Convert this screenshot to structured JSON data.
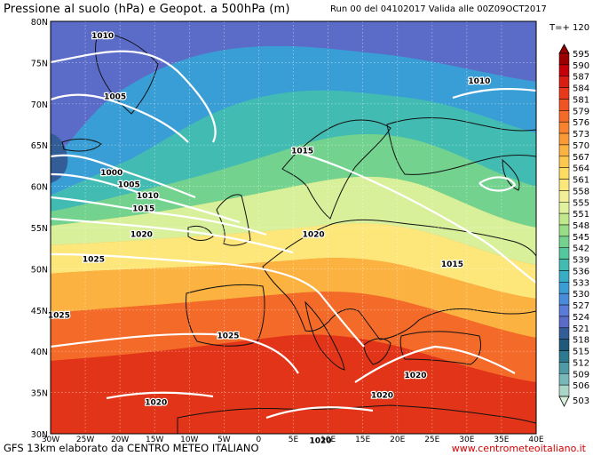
{
  "header": {
    "title": "Pressione al suolo (hPa) e Geopot. a 500hPa (m)",
    "run_info": "Run 00 del 04102017  Valida alle 00Z09OCT2017",
    "forecast_step": "T=+ 120"
  },
  "footer": {
    "model_credit": "GFS 13km elaborato da CENTRO METEO ITALIANO",
    "website": "www.centrometeoitaliano.it"
  },
  "map": {
    "lat_labels": [
      "80N",
      "75N",
      "70N",
      "65N",
      "60N",
      "55N",
      "50N",
      "45N",
      "40N",
      "35N",
      "30N"
    ],
    "lon_labels": [
      "30W",
      "25W",
      "20W",
      "15W",
      "10W",
      "5W",
      "0",
      "5E",
      "10E",
      "15E",
      "20E",
      "25E",
      "30E",
      "35E",
      "40E"
    ],
    "isobars": [
      {
        "label": "1010",
        "lon": -22.5,
        "lat": 78.3
      },
      {
        "label": "1010",
        "lon": 31.8,
        "lat": 72.8
      },
      {
        "label": "1005",
        "lon": -20.7,
        "lat": 70.9
      },
      {
        "label": "1000",
        "lon": -21.2,
        "lat": 61.7
      },
      {
        "label": "1005",
        "lon": -18.7,
        "lat": 60.2
      },
      {
        "label": "1010",
        "lon": -16.0,
        "lat": 58.9
      },
      {
        "label": "1015",
        "lon": 6.3,
        "lat": 64.3
      },
      {
        "label": "1015",
        "lon": -16.6,
        "lat": 57.3
      },
      {
        "label": "1020",
        "lon": -16.9,
        "lat": 54.2
      },
      {
        "label": "1020",
        "lon": 7.9,
        "lat": 54.2
      },
      {
        "label": "1025",
        "lon": -23.8,
        "lat": 51.2
      },
      {
        "label": "1015",
        "lon": 27.9,
        "lat": 50.6
      },
      {
        "label": "1025",
        "lon": -28.8,
        "lat": 44.4
      },
      {
        "label": "1025",
        "lon": -4.4,
        "lat": 41.9
      },
      {
        "label": "1020",
        "lon": 22.6,
        "lat": 37.1
      },
      {
        "label": "1020",
        "lon": 17.8,
        "lat": 34.7
      },
      {
        "label": "1020",
        "lon": -14.8,
        "lat": 33.8
      },
      {
        "label": "1020",
        "lon": 8.9,
        "lat": 29.2
      }
    ]
  },
  "legend": {
    "labels": [
      "595",
      "590",
      "587",
      "584",
      "581",
      "579",
      "576",
      "573",
      "570",
      "567",
      "564",
      "561",
      "558",
      "555",
      "551",
      "548",
      "545",
      "542",
      "539",
      "536",
      "533",
      "530",
      "527",
      "524",
      "521",
      "518",
      "515",
      "512",
      "509",
      "506",
      "503"
    ],
    "colors": [
      "#9a0000",
      "#c40008",
      "#d81e12",
      "#e83a1a",
      "#ef5422",
      "#f46a28",
      "#f8822e",
      "#fa9a36",
      "#fbb240",
      "#fcc94e",
      "#fddc62",
      "#fbe77a",
      "#f3ef96",
      "#e1f29c",
      "#bfe98a",
      "#98de86",
      "#72d28e",
      "#55c79e",
      "#42bcb2",
      "#38aec6",
      "#3a9ed6",
      "#4a8cdc",
      "#5b7bd9",
      "#5b6bc8",
      "#325d97",
      "#1f5a7a",
      "#2d7a90",
      "#4e9aa6",
      "#78b8b8",
      "#a9d6c6",
      "#d8f0dc"
    ]
  }
}
